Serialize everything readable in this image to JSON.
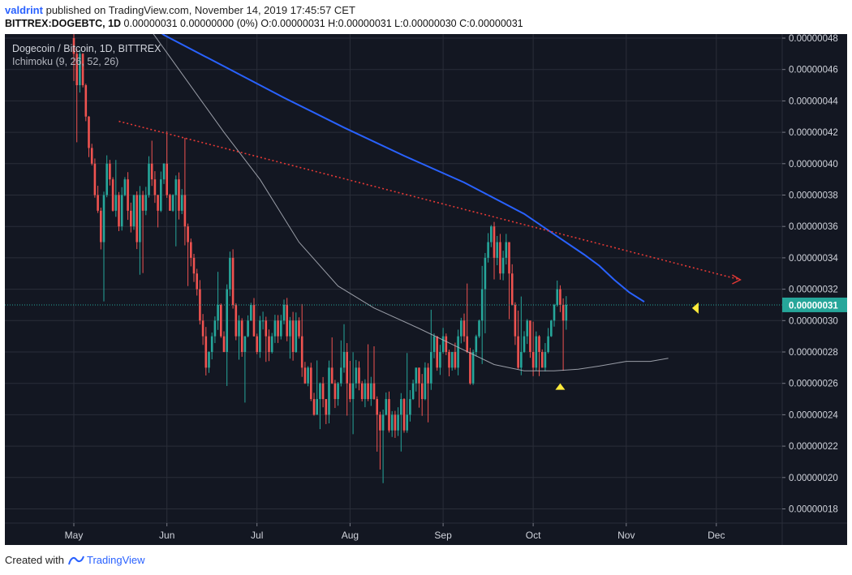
{
  "header": {
    "user": "valdrint",
    "published": "published on TradingView.com, November 14, 2019 17:45:57 CET",
    "symbol": "BITTREX:DOGEBTC, 1D",
    "quote": "0.00000031 0.00000000 (0%) O:0.00000031 H:0.00000031 L:0.00000030 C:0.00000031"
  },
  "legend": {
    "pair": "Dogecoin / Bitcoin, 1D, BITTREX",
    "indicator": "Ichimoku (9, 26, 52, 26)"
  },
  "footer": {
    "created_with": "Created with",
    "brand": "TradingView"
  },
  "chart_data": {
    "type": "candlestick",
    "ylim": [
      1.75e-07,
      4.8e-07
    ],
    "y_ticks": [
      "0.00000048",
      "0.00000046",
      "0.00000044",
      "0.00000042",
      "0.00000040",
      "0.00000038",
      "0.00000036",
      "0.00000034",
      "0.00000032",
      "0.00000030",
      "0.00000028",
      "0.00000026",
      "0.00000024",
      "0.00000022",
      "0.00000020",
      "0.00000018"
    ],
    "y_tick_values": [
      48,
      46,
      44,
      42,
      40,
      38,
      36,
      34,
      32,
      30,
      28,
      26,
      24,
      22,
      20,
      18
    ],
    "x_ticks": [
      "May",
      "Jun",
      "Jul",
      "Aug",
      "Sep",
      "Oct",
      "Nov",
      "Dec"
    ],
    "x_tick_days": [
      0,
      31,
      61,
      92,
      123,
      153,
      184,
      214
    ],
    "price_label": "0.00000031",
    "last_price": 31,
    "colors": {
      "up": "#26a69a",
      "down": "#ef5350",
      "background": "#131722",
      "grid": "#2a2e39",
      "trend": "#e53935",
      "kijun": "#2962ff",
      "senkou": "#b2b5be",
      "marker": "#ffeb3b",
      "price_tag": "#26a69a"
    },
    "closes": [
      47,
      45,
      47,
      45,
      43,
      41,
      40,
      38,
      37,
      35,
      38,
      40,
      39,
      37,
      38,
      36,
      38,
      39,
      37,
      36,
      38,
      35,
      38,
      37,
      38,
      40,
      39,
      38,
      37,
      39,
      40,
      38,
      37,
      38,
      39,
      37,
      38,
      36,
      35,
      34,
      33,
      32,
      30,
      29,
      27,
      28,
      29,
      30,
      31,
      29,
      28,
      32,
      34,
      31,
      29,
      30,
      28,
      29,
      30,
      31,
      29,
      28,
      30,
      30,
      29,
      28,
      29,
      30,
      29,
      30,
      31,
      29,
      30,
      28,
      30,
      29,
      27,
      26,
      27,
      25,
      24,
      25,
      26,
      25,
      24,
      27,
      26,
      25,
      26,
      27,
      28,
      26,
      25,
      26,
      27,
      26,
      25,
      26,
      25,
      26,
      25,
      24,
      23,
      24,
      25,
      23,
      24,
      23,
      24,
      25,
      23,
      24,
      25,
      26,
      27,
      26,
      25,
      27,
      26,
      28,
      29,
      27,
      28,
      29,
      28,
      27,
      28,
      27,
      29,
      30,
      29,
      28,
      26,
      28,
      29,
      30,
      32,
      34,
      35,
      36,
      34,
      35,
      33,
      34,
      35,
      33,
      31,
      29,
      27,
      28,
      29,
      30,
      28,
      27,
      29,
      28,
      27,
      28,
      29,
      30,
      31,
      32,
      31,
      30,
      31
    ],
    "trendline": {
      "from": {
        "day": 15,
        "price": 42.7
      },
      "to": {
        "day": 222,
        "price": 32.6
      }
    },
    "kijun": [
      [
        10,
        51
      ],
      [
        30,
        48.2
      ],
      [
        50,
        46.2
      ],
      [
        70,
        44.2
      ],
      [
        90,
        42.3
      ],
      [
        110,
        40.5
      ],
      [
        130,
        38.8
      ],
      [
        150,
        36.8
      ],
      [
        160,
        35.5
      ],
      [
        170,
        34.2
      ],
      [
        175,
        33.5
      ],
      [
        180,
        32.6
      ],
      [
        185,
        31.8
      ],
      [
        190,
        31.2
      ]
    ],
    "senkou": [
      [
        4,
        55
      ],
      [
        20,
        50
      ],
      [
        35,
        46
      ],
      [
        50,
        42
      ],
      [
        62,
        39
      ],
      [
        75,
        35
      ],
      [
        88,
        32.2
      ],
      [
        100,
        30.8
      ],
      [
        115,
        29.5
      ],
      [
        128,
        28.3
      ],
      [
        140,
        27.2
      ],
      [
        150,
        26.8
      ],
      [
        160,
        26.8
      ],
      [
        168,
        26.9
      ],
      [
        175,
        27.1
      ],
      [
        184,
        27.4
      ],
      [
        192,
        27.4
      ],
      [
        198,
        27.6
      ]
    ],
    "markers": [
      {
        "day": 162,
        "price": 25.8,
        "shape": "up-triangle"
      },
      {
        "day": 207,
        "price": 30.8,
        "shape": "left-triangle"
      }
    ]
  }
}
